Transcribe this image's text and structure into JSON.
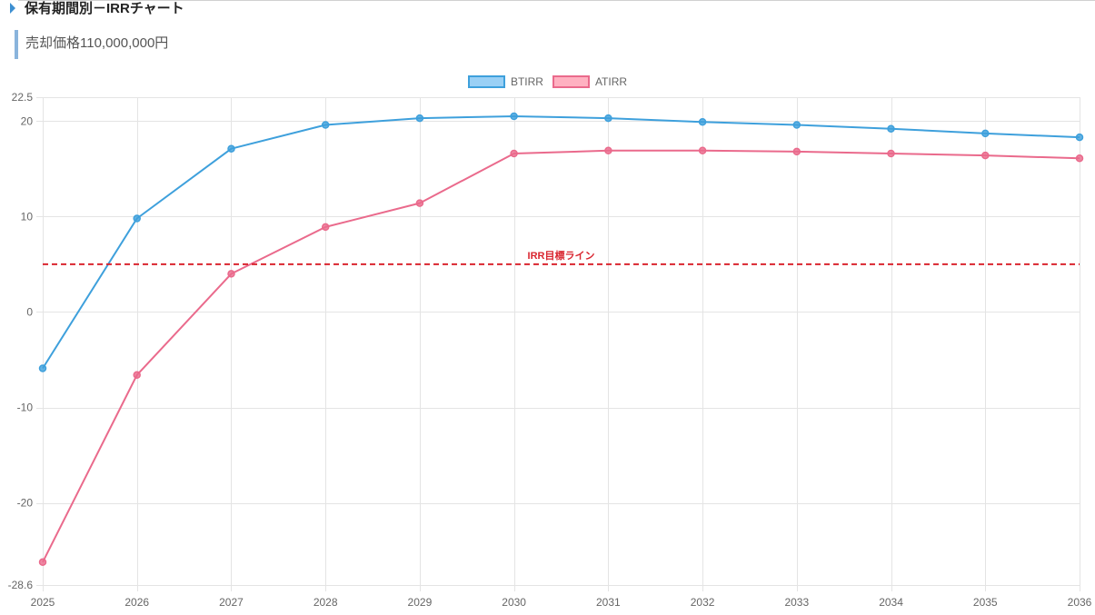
{
  "header": {
    "title": "保有期間別－IRRチャート",
    "marker_icon": "triangle-right-icon"
  },
  "sale_price": {
    "label": "売却価格110,000,000円"
  },
  "colors": {
    "title_marker": "#3d8fd1",
    "accent_bar": "#8ab4dc",
    "top_rule": "#d0d0d0",
    "grid": "#e4e4e4"
  },
  "chart_data": {
    "type": "line",
    "categories": [
      "2025",
      "2026",
      "2027",
      "2028",
      "2029",
      "2030",
      "2031",
      "2032",
      "2033",
      "2034",
      "2035",
      "2036"
    ],
    "series": [
      {
        "name": "BTIRR",
        "values": [
          -5.9,
          9.8,
          17.1,
          19.6,
          20.3,
          20.5,
          20.3,
          19.9,
          19.6,
          19.2,
          18.7,
          18.3
        ],
        "color": "#3ea0dc",
        "fill": "#9ad0f5"
      },
      {
        "name": "ATIRR",
        "values": [
          -26.2,
          -6.6,
          4.0,
          8.9,
          11.4,
          16.6,
          16.9,
          16.9,
          16.8,
          16.6,
          16.4,
          16.1
        ],
        "color": "#ea6a8c",
        "fill": "#ffb1c1"
      }
    ],
    "ylim": [
      -28.6,
      22.5
    ],
    "yticks": [
      22.5,
      20,
      10,
      0,
      -10,
      -20,
      -28.6
    ],
    "grid": true,
    "legend": "top-center",
    "annotations": [
      {
        "value": 5,
        "label": "IRR目標ライン",
        "color": "#d9252f"
      }
    ]
  }
}
